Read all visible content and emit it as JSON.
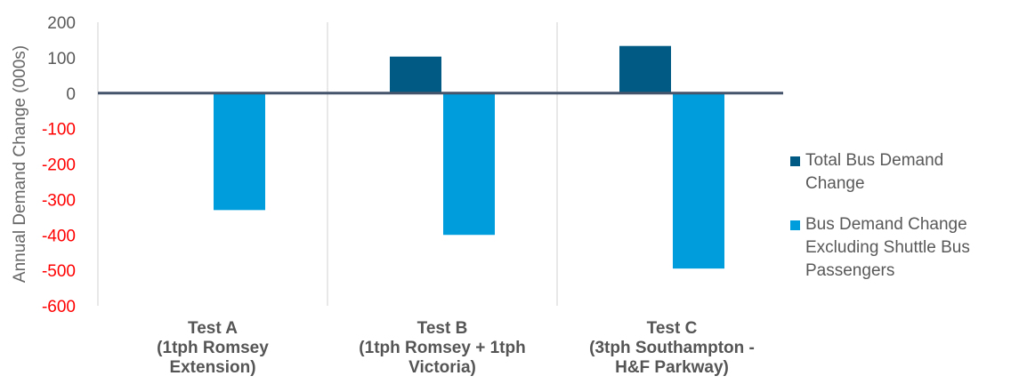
{
  "chart_data": {
    "type": "bar",
    "ylabel": "Annual Demand Change (000s)",
    "xlabel": "",
    "ylim": [
      -600,
      200
    ],
    "yticks": [
      200,
      100,
      0,
      -100,
      -200,
      -300,
      -400,
      -500,
      -600
    ],
    "negative_tick_color": "#ff0000",
    "positive_tick_color": "#595959",
    "categories": [
      [
        "Test A",
        "(1tph Romsey",
        "Extension)"
      ],
      [
        "Test B",
        "(1tph Romsey + 1tph",
        "Victoria)"
      ],
      [
        "Test C",
        "(3tph Southampton -",
        "H&F Parkway)"
      ]
    ],
    "series": [
      {
        "name": "Total Bus Demand Change",
        "color": "#005a84",
        "values": [
          0,
          103,
          133
        ]
      },
      {
        "name": "Bus Demand Change Excluding Shuttle Bus Passengers",
        "color": "#009ddc",
        "values": [
          -330,
          -400,
          -495
        ]
      }
    ],
    "legend_position": "right",
    "grid": false
  },
  "legend": {
    "items": [
      {
        "lines": [
          "Total Bus Demand",
          "Change"
        ],
        "color": "#005a84"
      },
      {
        "lines": [
          "Bus Demand Change",
          "Excluding Shuttle Bus",
          "Passengers"
        ],
        "color": "#009ddc"
      }
    ]
  }
}
